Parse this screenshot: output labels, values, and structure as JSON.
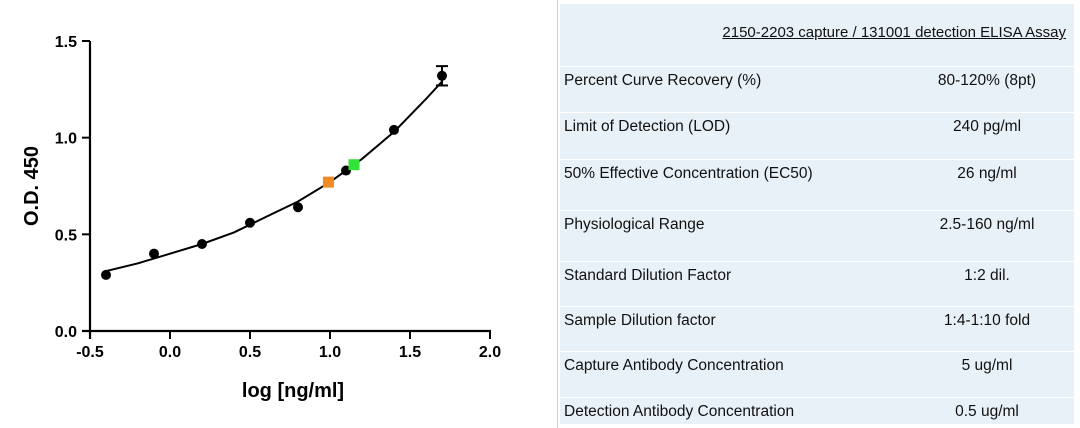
{
  "chart_data": {
    "type": "scatter",
    "xlabel": "log [ng/ml]",
    "ylabel": "O.D. 450",
    "xlim": [
      -0.5,
      2.0
    ],
    "ylim": [
      0.0,
      1.5
    ],
    "xticks": [
      "-0.5",
      "0.0",
      "0.5",
      "1.0",
      "1.5",
      "2.0"
    ],
    "xtick_values": [
      -0.5,
      0.0,
      0.5,
      1.0,
      1.5,
      2.0
    ],
    "yticks": [
      "0.0",
      "0.5",
      "1.0",
      "1.5"
    ],
    "ytick_values": [
      0.0,
      0.5,
      1.0,
      1.5
    ],
    "grid": false,
    "series": [
      {
        "name": "standard",
        "color": "#000000",
        "x": [
          -0.4,
          -0.1,
          0.2,
          0.5,
          0.8,
          1.1,
          1.4,
          1.7
        ],
        "y": [
          0.29,
          0.4,
          0.45,
          0.56,
          0.64,
          0.83,
          1.04,
          1.32
        ],
        "error": [
          0.01,
          0.01,
          0.01,
          0.01,
          0.01,
          0.01,
          0.01,
          0.05
        ]
      }
    ],
    "highlight_points": [
      {
        "name": "orange-sample",
        "x": 0.99,
        "y": 0.77,
        "color": "#f28a24"
      },
      {
        "name": "green-sample",
        "x": 1.15,
        "y": 0.86,
        "color": "#33e23a"
      }
    ],
    "fit_curve": {
      "x": [
        -0.4,
        -0.2,
        0.0,
        0.2,
        0.4,
        0.6,
        0.8,
        1.0,
        1.2,
        1.4,
        1.6,
        1.7
      ],
      "y": [
        0.31,
        0.35,
        0.4,
        0.45,
        0.51,
        0.59,
        0.67,
        0.77,
        0.89,
        1.03,
        1.2,
        1.29
      ]
    }
  },
  "table": {
    "title": "2150-2203 capture / 131001 detection ELISA Assay",
    "rows": [
      {
        "label": "Percent Curve Recovery (%)",
        "value": "80-120% (8pt)"
      },
      {
        "label": "Limit of Detection (LOD)",
        "value": "240 pg/ml"
      },
      {
        "label": "50% Effective Concentration (EC50)",
        "value": "26 ng/ml"
      },
      {
        "label": "Physiological Range",
        "value": "2.5-160 ng/ml"
      },
      {
        "label": "Standard Dilution Factor",
        "value": "1:2 dil."
      },
      {
        "label": "Sample Dilution factor",
        "value": "1:4-1:10 fold"
      },
      {
        "label": "Capture Antibody Concentration",
        "value": "5 ug/ml"
      },
      {
        "label": "Detection Antibody Concentration",
        "value": "0.5 ug/ml"
      }
    ]
  }
}
